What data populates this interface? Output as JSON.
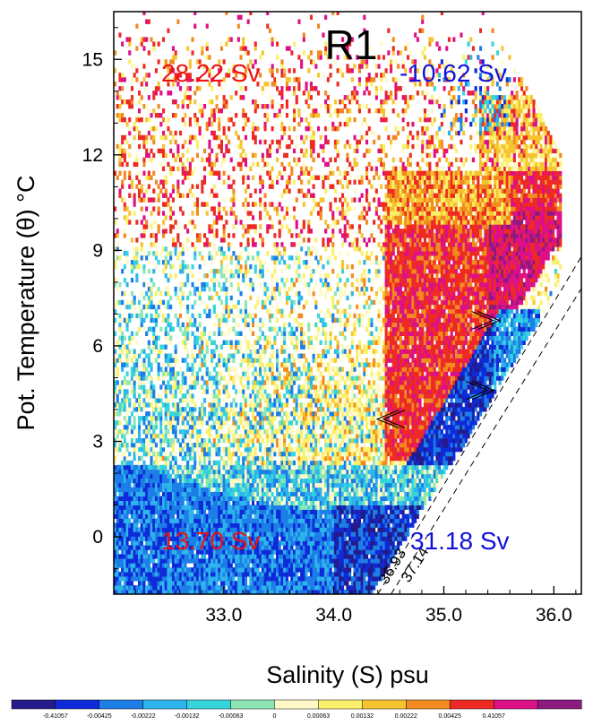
{
  "chart_data": {
    "type": "heatmap",
    "title": "R1",
    "xlabel": "Salinity (S) psu",
    "ylabel": "Pot. Temperature (θ) °C",
    "xlim": [
      32.0,
      36.25
    ],
    "ylim": [
      -1.8,
      16.5
    ],
    "xticks": [
      "33.0",
      "34.0",
      "35.0",
      "36.0"
    ],
    "xtick_values": [
      33.0,
      34.0,
      35.0,
      36.0
    ],
    "yticks": [
      "0",
      "3",
      "6",
      "9",
      "12",
      "15"
    ],
    "ytick_values": [
      0,
      3,
      6,
      9,
      12,
      15
    ],
    "grid": false,
    "annotations": [
      {
        "text": "28.22 Sv",
        "color": "#ee1111",
        "x": 32.5,
        "y": 14.7
      },
      {
        "text": "-10.62 Sv",
        "color": "#1111dd",
        "x": 34.6,
        "y": 14.7
      },
      {
        "text": "13.70 Sv",
        "color": "#ee1111",
        "x": 32.5,
        "y": -0.3
      },
      {
        "text": "31.18 Sv",
        "color": "#1111dd",
        "x": 34.85,
        "y": -0.3
      }
    ],
    "isopycnals": [
      {
        "label": "36.93",
        "points": [
          [
            34.4,
            -1.8
          ],
          [
            36.25,
            8.8
          ]
        ]
      },
      {
        "label": "37.14",
        "points": [
          [
            34.52,
            -1.8
          ],
          [
            36.25,
            7.8
          ]
        ]
      }
    ],
    "arrows": [
      {
        "direction": "right",
        "x": 35.35,
        "y": 6.8
      },
      {
        "direction": "left",
        "x": 34.55,
        "y": 3.7
      },
      {
        "direction": "right",
        "x": 35.3,
        "y": 4.6
      }
    ],
    "colorbar": {
      "labels": [
        "-0.41057",
        "-0.00425",
        "-0.00222",
        "-0.00132",
        "-0.00063",
        "0",
        "0.00063",
        "0.00132",
        "0.00222",
        "0.00425",
        "0.41057"
      ],
      "colors": [
        "#241a8a",
        "#0f2ad8",
        "#1c7ee6",
        "#2eb4ec",
        "#34d6dc",
        "#8ee6b4",
        "#fff9c8",
        "#fbf06a",
        "#f5c430",
        "#f18a20",
        "#ee2a24",
        "#dd1088",
        "#8c1a80"
      ]
    },
    "regions": [
      {
        "name": "warm-scatter",
        "xrange": [
          32.0,
          35.3
        ],
        "yrange": [
          7.5,
          15.5
        ],
        "dominant": "red-orange-yellow sparse"
      },
      {
        "name": "mid-mix",
        "xrange": [
          32.0,
          35.0
        ],
        "yrange": [
          2.0,
          9.0
        ],
        "dominant": "yellow-cyan mixed"
      },
      {
        "name": "cold-band",
        "xrange": [
          32.0,
          34.4
        ],
        "yrange": [
          -1.8,
          2.0
        ],
        "dominant": "cyan-blue dense"
      },
      {
        "name": "positive-ridge",
        "xrange": [
          34.5,
          36.1
        ],
        "yrange": [
          2.5,
          11.0
        ],
        "dominant": "red-magenta"
      },
      {
        "name": "negative-ridge",
        "xrange": [
          34.3,
          35.8
        ],
        "yrange": [
          2.5,
          7.0
        ],
        "dominant": "dark blue"
      }
    ]
  }
}
